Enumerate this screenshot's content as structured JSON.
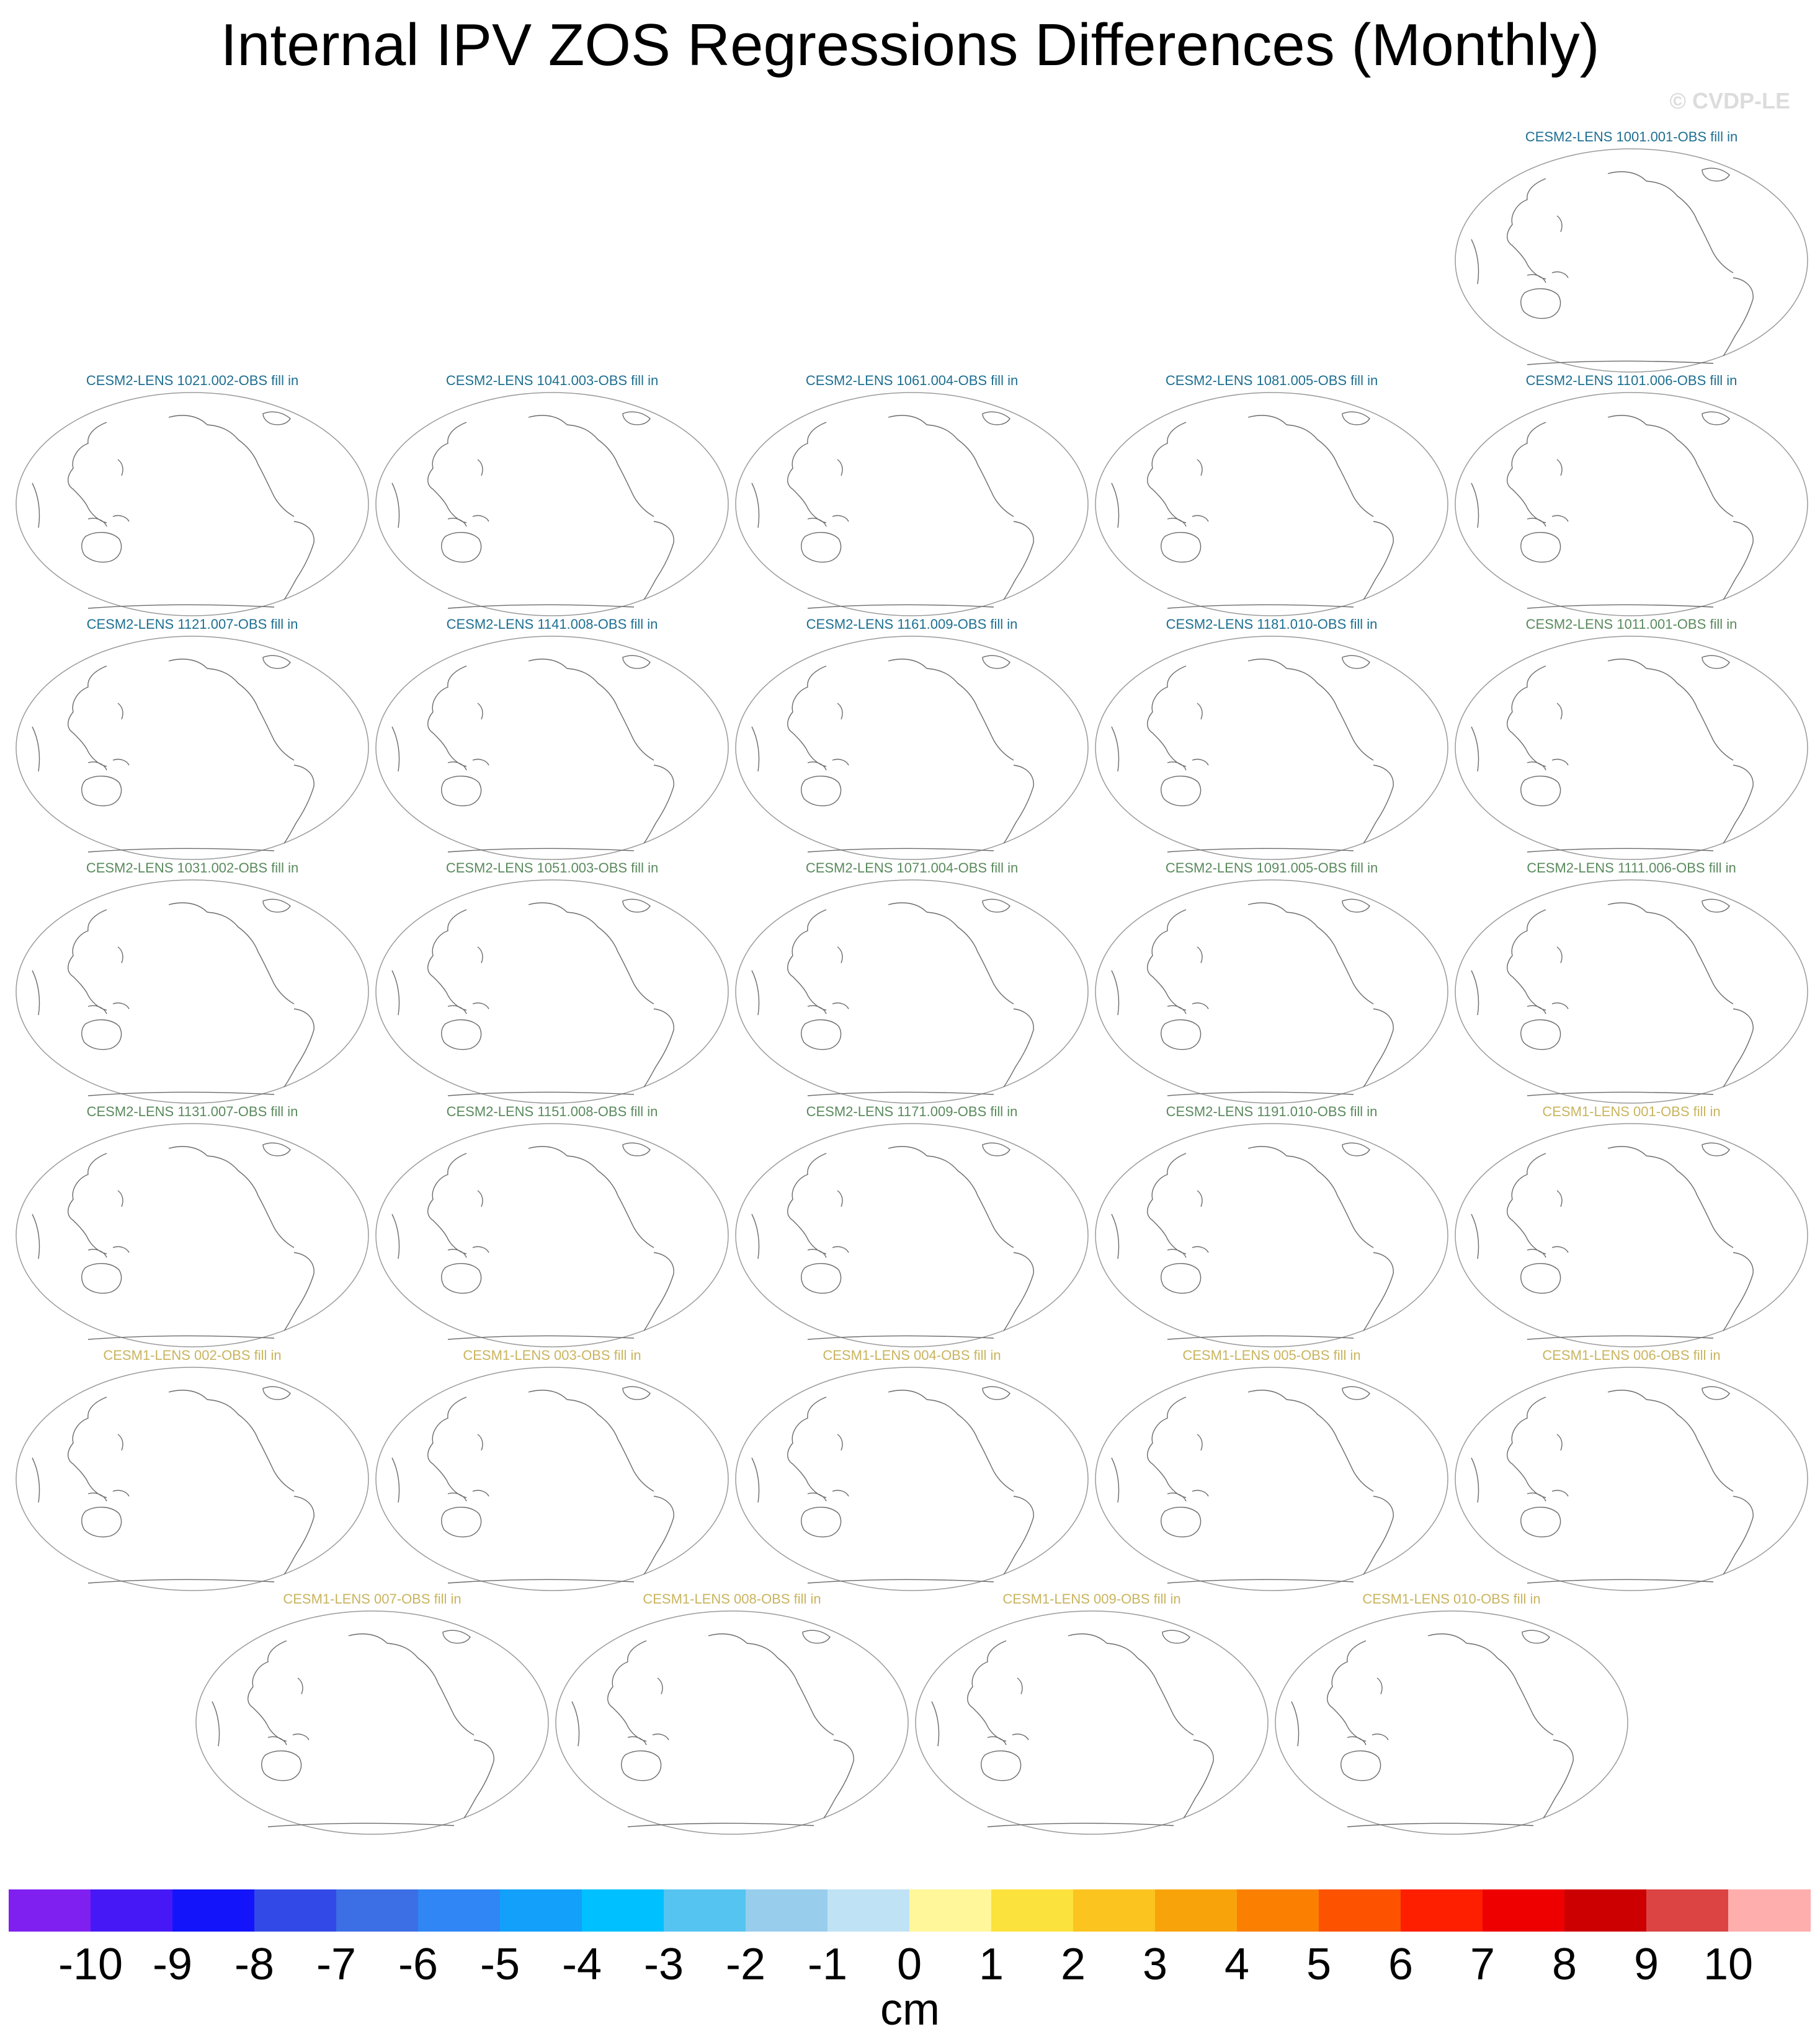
{
  "title": "Internal IPV ZOS Regressions Differences (Monthly)",
  "watermark": "© CVDP-LE",
  "group_colors": {
    "cesm2_a": "#1d6f91",
    "cesm2_b": "#5a8a5d",
    "cesm1": "#c9b45e"
  },
  "panels": [
    {
      "title": "CESM2-LENS 1001.001-OBS fill in",
      "group": "cesm2_a"
    },
    {
      "title": "CESM2-LENS 1021.002-OBS fill in",
      "group": "cesm2_a"
    },
    {
      "title": "CESM2-LENS 1041.003-OBS fill in",
      "group": "cesm2_a"
    },
    {
      "title": "CESM2-LENS 1061.004-OBS fill in",
      "group": "cesm2_a"
    },
    {
      "title": "CESM2-LENS 1081.005-OBS fill in",
      "group": "cesm2_a"
    },
    {
      "title": "CESM2-LENS 1101.006-OBS fill in",
      "group": "cesm2_a"
    },
    {
      "title": "CESM2-LENS 1121.007-OBS fill in",
      "group": "cesm2_a"
    },
    {
      "title": "CESM2-LENS 1141.008-OBS fill in",
      "group": "cesm2_a"
    },
    {
      "title": "CESM2-LENS 1161.009-OBS fill in",
      "group": "cesm2_a"
    },
    {
      "title": "CESM2-LENS 1181.010-OBS fill in",
      "group": "cesm2_a"
    },
    {
      "title": "CESM2-LENS 1011.001-OBS fill in",
      "group": "cesm2_b"
    },
    {
      "title": "CESM2-LENS 1031.002-OBS fill in",
      "group": "cesm2_b"
    },
    {
      "title": "CESM2-LENS 1051.003-OBS fill in",
      "group": "cesm2_b"
    },
    {
      "title": "CESM2-LENS 1071.004-OBS fill in",
      "group": "cesm2_b"
    },
    {
      "title": "CESM2-LENS 1091.005-OBS fill in",
      "group": "cesm2_b"
    },
    {
      "title": "CESM2-LENS 1111.006-OBS fill in",
      "group": "cesm2_b"
    },
    {
      "title": "CESM2-LENS 1131.007-OBS fill in",
      "group": "cesm2_b"
    },
    {
      "title": "CESM2-LENS 1151.008-OBS fill in",
      "group": "cesm2_b"
    },
    {
      "title": "CESM2-LENS 1171.009-OBS fill in",
      "group": "cesm2_b"
    },
    {
      "title": "CESM2-LENS 1191.010-OBS fill in",
      "group": "cesm2_b"
    },
    {
      "title": "CESM1-LENS 001-OBS fill in",
      "group": "cesm1"
    },
    {
      "title": "CESM1-LENS 002-OBS fill in",
      "group": "cesm1"
    },
    {
      "title": "CESM1-LENS 003-OBS fill in",
      "group": "cesm1"
    },
    {
      "title": "CESM1-LENS 004-OBS fill in",
      "group": "cesm1"
    },
    {
      "title": "CESM1-LENS 005-OBS fill in",
      "group": "cesm1"
    },
    {
      "title": "CESM1-LENS 006-OBS fill in",
      "group": "cesm1"
    },
    {
      "title": "CESM1-LENS 007-OBS fill in",
      "group": "cesm1"
    },
    {
      "title": "CESM1-LENS 008-OBS fill in",
      "group": "cesm1"
    },
    {
      "title": "CESM1-LENS 009-OBS fill in",
      "group": "cesm1"
    },
    {
      "title": "CESM1-LENS 010-OBS fill in",
      "group": "cesm1"
    }
  ],
  "colorbar": {
    "unit": "cm",
    "labels": [
      "-10",
      "-9",
      "-8",
      "-7",
      "-6",
      "-5",
      "-4",
      "-3",
      "-2",
      "-1",
      "0",
      "1",
      "2",
      "3",
      "4",
      "5",
      "6",
      "7",
      "8",
      "9",
      "10"
    ],
    "colors": [
      "#8020f0",
      "#4618f5",
      "#1414fa",
      "#3249e8",
      "#3c6ee6",
      "#2f86f4",
      "#12a0fa",
      "#00c0ff",
      "#55c4f0",
      "#98cdec",
      "#bfe2f4",
      "#fff79a",
      "#fce23c",
      "#fbc41e",
      "#f9a30a",
      "#fb8002",
      "#fd5200",
      "#fe1e00",
      "#ee0000",
      "#cc0000",
      "#dc4444",
      "#ffaeae"
    ]
  }
}
